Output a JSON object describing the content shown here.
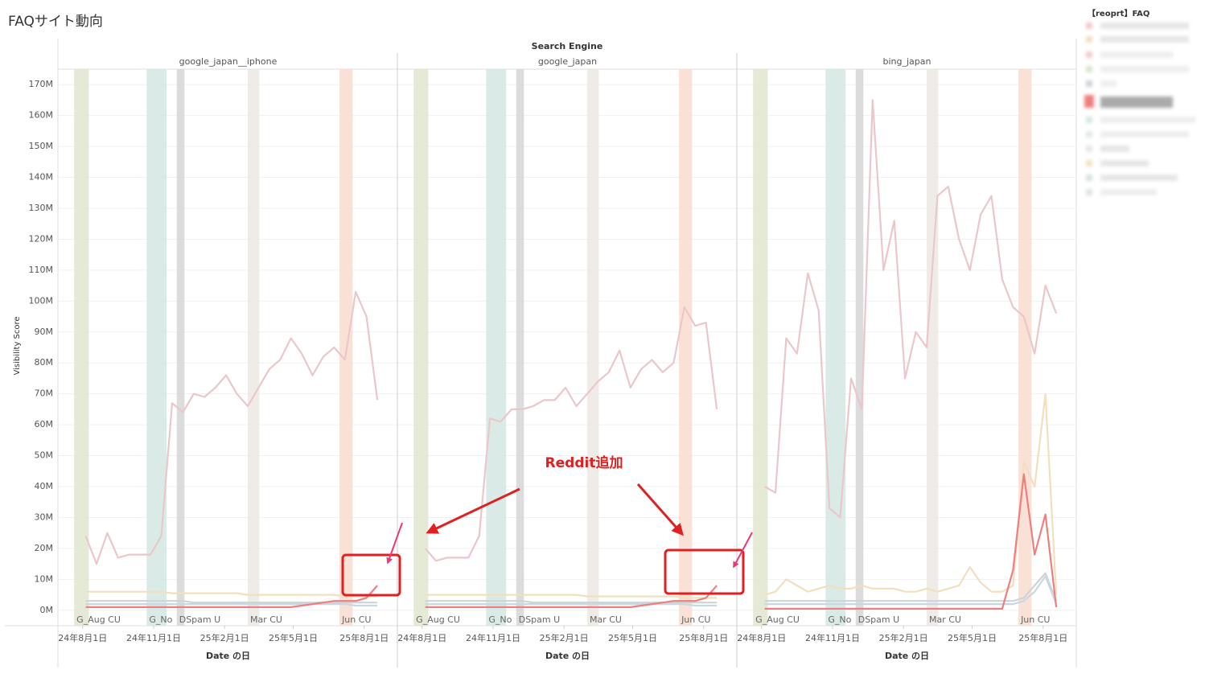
{
  "chart_data": {
    "type": "line",
    "title": "FAQサイト動向",
    "header": "Search Engine",
    "y_label": "Visibility Score",
    "x_label": "Date の日",
    "legend_title": "【reoprt】FAQ",
    "annotation": "Reddit追加",
    "xlim": [
      "2024-07-01",
      "2025-09-13"
    ],
    "xticks": [
      {
        "value": "2024-08-01",
        "label": "24年8月1日"
      },
      {
        "value": "2024-11-01",
        "label": "24年11月1日"
      },
      {
        "value": "2025-02-01",
        "label": "25年2月1日"
      },
      {
        "value": "2025-05-01",
        "label": "25年5月1日"
      },
      {
        "value": "2025-08-01",
        "label": "25年8月1日"
      }
    ],
    "ylim": [
      -5,
      175
    ],
    "yticks": [
      {
        "value": 0,
        "label": "0M"
      },
      {
        "value": 10,
        "label": "10M"
      },
      {
        "value": 20,
        "label": "20M"
      },
      {
        "value": 30,
        "label": "30M"
      },
      {
        "value": 40,
        "label": "40M"
      },
      {
        "value": 50,
        "label": "50M"
      },
      {
        "value": 60,
        "label": "60M"
      },
      {
        "value": 70,
        "label": "70M"
      },
      {
        "value": 80,
        "label": "80M"
      },
      {
        "value": 90,
        "label": "90M"
      },
      {
        "value": 100,
        "label": "100M"
      },
      {
        "value": 110,
        "label": "110M"
      },
      {
        "value": 120,
        "label": "120M"
      },
      {
        "value": 130,
        "label": "130M"
      },
      {
        "value": 140,
        "label": "140M"
      },
      {
        "value": 150,
        "label": "150M"
      },
      {
        "value": 160,
        "label": "160M"
      },
      {
        "value": 170,
        "label": "170M"
      }
    ],
    "grid": true,
    "events": [
      {
        "label": "G_Aug CU",
        "start": "2024-07-21",
        "end": "2024-08-09",
        "color": "#dfe6cf"
      },
      {
        "label": "G_No",
        "start": "2024-10-23",
        "end": "2024-11-18",
        "color": "#d3e6e2"
      },
      {
        "label": "DSpam U",
        "start": "2024-12-01",
        "end": "2024-12-11",
        "color": "#d6d6d6"
      },
      {
        "label": "Mar CU",
        "start": "2025-03-03",
        "end": "2025-03-18",
        "color": "#ece8e3"
      },
      {
        "label": "Jun CU",
        "start": "2025-06-30",
        "end": "2025-07-17",
        "color": "#f9dccf"
      }
    ],
    "x": [
      "2024-08-05",
      "2024-08-19",
      "2024-09-02",
      "2024-09-16",
      "2024-09-30",
      "2024-10-14",
      "2024-10-28",
      "2024-11-11",
      "2024-11-25",
      "2024-12-09",
      "2024-12-23",
      "2025-01-06",
      "2025-01-20",
      "2025-02-03",
      "2025-02-17",
      "2025-03-03",
      "2025-03-17",
      "2025-03-31",
      "2025-04-14",
      "2025-04-28",
      "2025-05-12",
      "2025-05-26",
      "2025-06-09",
      "2025-06-23",
      "2025-07-07",
      "2025-07-21",
      "2025-08-04",
      "2025-08-18"
    ],
    "panels": [
      {
        "name": "google_japan__iphone",
        "series": [
          {
            "color": "#f1dfbd",
            "values": [
              6,
              6,
              6,
              6,
              6,
              6,
              6,
              6,
              5.5,
              5.5,
              5.5,
              5.5,
              5.5,
              5.5,
              5.5,
              5,
              5,
              5,
              5,
              5,
              5,
              5,
              5,
              5,
              4.5,
              4.5,
              4.5,
              4.5
            ]
          },
          {
            "color": "#cdd3d6",
            "values": [
              3,
              3,
              3,
              3,
              3,
              3,
              3,
              3,
              3,
              3,
              2.5,
              2.5,
              2.5,
              2.5,
              2.5,
              2.5,
              2.5,
              2.5,
              2.5,
              2.5,
              2.5,
              2.5,
              2.5,
              2.5,
              2.5,
              2.5,
              2.5,
              2.5
            ]
          },
          {
            "color": "#c7d8e3",
            "values": [
              2,
              2,
              2,
              2,
              2,
              2,
              2,
              2,
              2,
              2,
              2,
              2,
              2,
              2,
              2,
              2,
              2,
              2,
              2,
              2,
              2,
              2,
              2,
              2,
              2,
              1.5,
              1.5,
              1.5
            ]
          },
          {
            "color": "#ebc6cb",
            "values": [
              24,
              15,
              25,
              17,
              18,
              18,
              18,
              24,
              67,
              64,
              70,
              69,
              72,
              76,
              70,
              66,
              72,
              78,
              81,
              88,
              83,
              76,
              82,
              85,
              81,
              103,
              95,
              68
            ]
          },
          {
            "color": "#ef7f7f",
            "values": [
              1,
              1,
              1,
              1,
              1,
              1,
              1,
              1,
              1,
              1,
              1,
              1,
              1,
              1,
              1,
              1,
              1,
              1,
              1,
              1,
              1.5,
              2,
              2.5,
              3,
              3,
              3,
              4,
              8
            ]
          }
        ]
      },
      {
        "name": "google_japan",
        "series": [
          {
            "color": "#f1dfbd",
            "values": [
              5,
              5,
              5,
              5,
              5,
              5,
              5,
              5,
              5,
              5,
              5,
              5,
              5,
              5,
              5,
              4.5,
              4.5,
              4.5,
              4.5,
              4.5,
              4.5,
              4.5,
              4.5,
              4.5,
              4,
              4,
              4,
              4
            ]
          },
          {
            "color": "#cdd3d6",
            "values": [
              3,
              3,
              3,
              3,
              3,
              3,
              3,
              3,
              3,
              3,
              2.5,
              2.5,
              2.5,
              2.5,
              2.5,
              2.5,
              2.5,
              2.5,
              2.5,
              2.5,
              2.5,
              2.5,
              2.5,
              2.5,
              2.5,
              2.5,
              2.5,
              2.5
            ]
          },
          {
            "color": "#c7d8e3",
            "values": [
              2,
              2,
              2,
              2,
              2,
              2,
              2,
              2,
              2,
              2,
              2,
              2,
              2,
              2,
              2,
              2,
              2,
              2,
              2,
              2,
              2,
              2,
              2,
              2,
              2,
              1.5,
              1.5,
              1.5
            ]
          },
          {
            "color": "#ebc6cb",
            "values": [
              20,
              16,
              17,
              17,
              17,
              24,
              62,
              61,
              65,
              65,
              66,
              68,
              68,
              72,
              66,
              70,
              74,
              77,
              84,
              72,
              78,
              81,
              77,
              80,
              98,
              92,
              93,
              65
            ]
          },
          {
            "color": "#ef7f7f",
            "values": [
              1,
              1,
              1,
              1,
              1,
              1,
              1,
              1,
              1,
              1,
              1,
              1,
              1,
              1,
              1,
              1,
              1,
              1,
              1,
              1,
              1.5,
              2,
              2.5,
              3,
              3,
              3,
              4,
              8
            ]
          }
        ]
      },
      {
        "name": "bing_japan",
        "series": [
          {
            "color": "#f1dfbd",
            "values": [
              5,
              6,
              10,
              8,
              6,
              7,
              8,
              7,
              7,
              8,
              7,
              7,
              7,
              6,
              6,
              7,
              6,
              7,
              8,
              14,
              9,
              6,
              6,
              8,
              48,
              40,
              70,
              5
            ]
          },
          {
            "color": "#cdd3d6",
            "values": [
              3,
              3,
              3,
              3,
              3,
              3,
              3,
              3,
              3,
              3,
              3,
              3,
              3,
              3,
              3,
              3,
              3,
              3,
              3,
              3,
              3,
              3,
              3,
              3,
              4,
              8,
              12,
              3
            ]
          },
          {
            "color": "#c7d8e3",
            "values": [
              2,
              2,
              2,
              2,
              2,
              2,
              2,
              2,
              2,
              2,
              2,
              2,
              2,
              2,
              2,
              2,
              2,
              2,
              2,
              2,
              2,
              2,
              2,
              2,
              3,
              6,
              11,
              2
            ]
          },
          {
            "color": "#ebc6cb",
            "values": [
              40,
              38,
              88,
              83,
              109,
              97,
              33,
              30,
              75,
              65,
              165,
              110,
              126,
              75,
              90,
              85,
              134,
              137,
              120,
              110,
              128,
              134,
              107,
              98,
              95,
              83,
              105,
              96
            ]
          },
          {
            "color": "#ef7f7f",
            "values": [
              0.5,
              0.5,
              0.5,
              0.5,
              0.5,
              0.5,
              0.5,
              0.5,
              0.5,
              0.5,
              0.5,
              0.5,
              0.5,
              0.5,
              0.5,
              0.5,
              0.5,
              0.5,
              0.5,
              0.5,
              0.5,
              0.5,
              0.5,
              13,
              44,
              18,
              31,
              1
            ]
          }
        ]
      }
    ]
  }
}
